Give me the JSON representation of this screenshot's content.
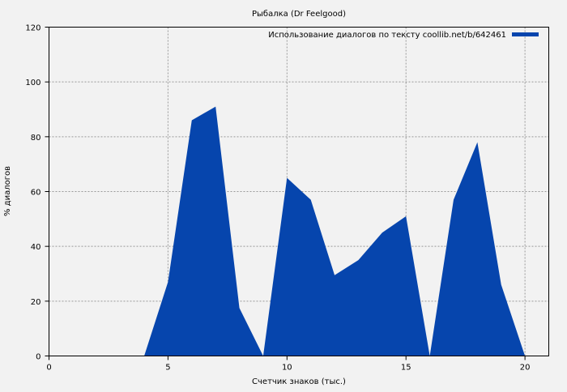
{
  "chart_data": {
    "type": "area",
    "title": "Рыбалка (Dr Feelgood)",
    "xlabel": "Счетчик знаков (тыс.)",
    "ylabel": "% диалогов",
    "xlim": [
      0,
      21
    ],
    "ylim": [
      0,
      120
    ],
    "xticks": [
      0,
      5,
      10,
      15,
      20
    ],
    "yticks": [
      0,
      20,
      40,
      60,
      80,
      100,
      120
    ],
    "grid": true,
    "legend_position": "top-right",
    "series": [
      {
        "name": "Использование диалогов по тексту coollib.net/b/642461",
        "color": "#0645ad",
        "x": [
          4,
          5,
          6,
          7,
          8,
          9,
          10,
          11,
          12,
          13,
          14,
          15,
          16,
          17,
          18,
          19,
          20
        ],
        "y": [
          0,
          27,
          86,
          91,
          17.5,
          0,
          65,
          57,
          29.5,
          35,
          45,
          51,
          0,
          57,
          78,
          26,
          0
        ]
      }
    ]
  }
}
